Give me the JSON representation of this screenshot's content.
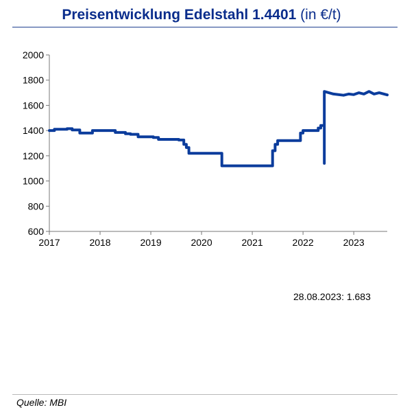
{
  "header": {
    "title_main": "Preisentwicklung Edelstahl 1.4401",
    "title_unit": "(in €/t)"
  },
  "annotation": "28.08.2023: 1.683",
  "source": "Quelle: MBI",
  "colors": {
    "line": "#0b3c9c",
    "title": "#0a2d8c",
    "axis": "#777777"
  },
  "chart_data": {
    "type": "line",
    "title": "Preisentwicklung Edelstahl 1.4401 (in €/t)",
    "xlabel": "",
    "ylabel": "",
    "xlim": [
      2017,
      2023.66
    ],
    "ylim": [
      600,
      2000
    ],
    "x_ticks": [
      "2017",
      "2018",
      "2019",
      "2020",
      "2021",
      "2022",
      "2023"
    ],
    "y_ticks": [
      "2000",
      "1800",
      "1600",
      "1400",
      "1200",
      "1000",
      "800",
      "600"
    ],
    "grid": false,
    "legend": "none",
    "series": [
      {
        "x": [
          2017.0,
          2017.1,
          2017.1,
          2017.35,
          2017.35,
          2017.45,
          2017.45,
          2017.6,
          2017.6,
          2017.85,
          2017.85,
          2018.3,
          2018.3,
          2018.5,
          2018.5,
          2018.6,
          2018.6,
          2018.75,
          2018.75,
          2019.05,
          2019.05,
          2019.15,
          2019.15,
          2019.55,
          2019.55,
          2019.65,
          2019.65,
          2019.7,
          2019.7,
          2019.75,
          2019.75,
          2020.4,
          2020.4,
          2021.4,
          2021.4,
          2021.45,
          2021.45,
          2021.5,
          2021.5,
          2021.95,
          2021.95,
          2022.0,
          2022.0,
          2022.3,
          2022.3,
          2022.35,
          2022.35,
          2022.42,
          2022.42,
          2022.42,
          2022.42,
          2022.6,
          2022.8,
          2022.9,
          2023.0,
          2023.1,
          2023.2,
          2023.3,
          2023.4,
          2023.5,
          2023.66
        ],
        "y": [
          1400,
          1400,
          1410,
          1410,
          1415,
          1415,
          1405,
          1405,
          1380,
          1380,
          1400,
          1400,
          1385,
          1385,
          1375,
          1375,
          1370,
          1370,
          1350,
          1350,
          1345,
          1345,
          1330,
          1330,
          1325,
          1325,
          1290,
          1290,
          1265,
          1265,
          1220,
          1220,
          1120,
          1120,
          1240,
          1240,
          1290,
          1290,
          1320,
          1320,
          1380,
          1380,
          1400,
          1400,
          1420,
          1420,
          1440,
          1440,
          1140,
          1140,
          1710,
          1690,
          1680,
          1690,
          1685,
          1700,
          1690,
          1710,
          1690,
          1700,
          1683
        ]
      }
    ]
  }
}
